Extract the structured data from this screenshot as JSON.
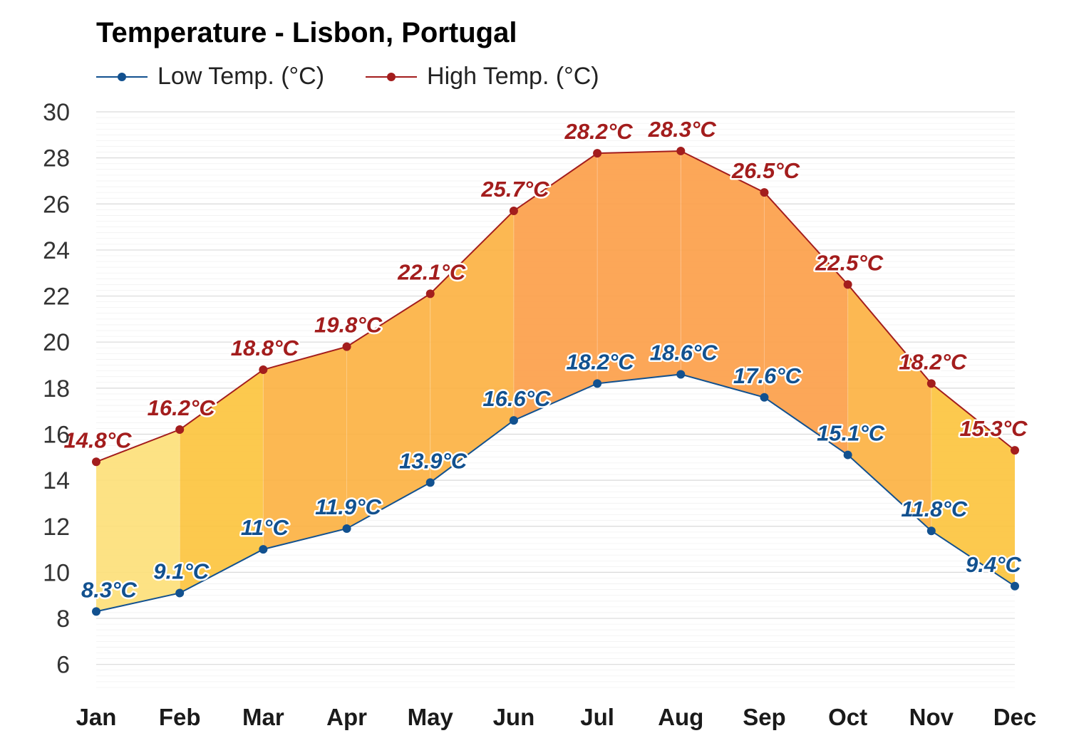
{
  "chart_data": {
    "type": "line",
    "title": "Temperature - Lisbon, Portugal",
    "categories": [
      "Jan",
      "Feb",
      "Mar",
      "Apr",
      "May",
      "Jun",
      "Jul",
      "Aug",
      "Sep",
      "Oct",
      "Nov",
      "Dec"
    ],
    "series": [
      {
        "name": "Low Temp. (°C)",
        "color": "#12518f",
        "values": [
          8.3,
          9.1,
          11,
          11.9,
          13.9,
          16.6,
          18.2,
          18.6,
          17.6,
          15.1,
          11.8,
          9.4
        ],
        "labels": [
          "8.3°C",
          "9.1°C",
          "11°C",
          "11.9°C",
          "13.9°C",
          "16.6°C",
          "18.2°C",
          "18.6°C",
          "17.6°C",
          "15.1°C",
          "11.8°C",
          "9.4°C"
        ]
      },
      {
        "name": "High Temp. (°C)",
        "color": "#a31d1d",
        "values": [
          14.8,
          16.2,
          18.8,
          19.8,
          22.1,
          25.7,
          28.2,
          28.3,
          26.5,
          22.5,
          18.2,
          15.3
        ],
        "labels": [
          "14.8°C",
          "16.2°C",
          "18.8°C",
          "19.8°C",
          "22.1°C",
          "25.7°C",
          "28.2°C",
          "28.3°C",
          "26.5°C",
          "22.5°C",
          "18.2°C",
          "15.3°C"
        ]
      }
    ],
    "yticks": [
      "30",
      "28",
      "26",
      "24",
      "22",
      "20",
      "18",
      "16",
      "14",
      "12",
      "10",
      "8",
      "6"
    ],
    "ylim": [
      5,
      30
    ],
    "grid": true,
    "legend_position": "top-left",
    "fill_between": true,
    "fill_colors": {
      "cool": "#fde07a",
      "mid": "#fcc43f",
      "warm": "#fca04a"
    }
  }
}
